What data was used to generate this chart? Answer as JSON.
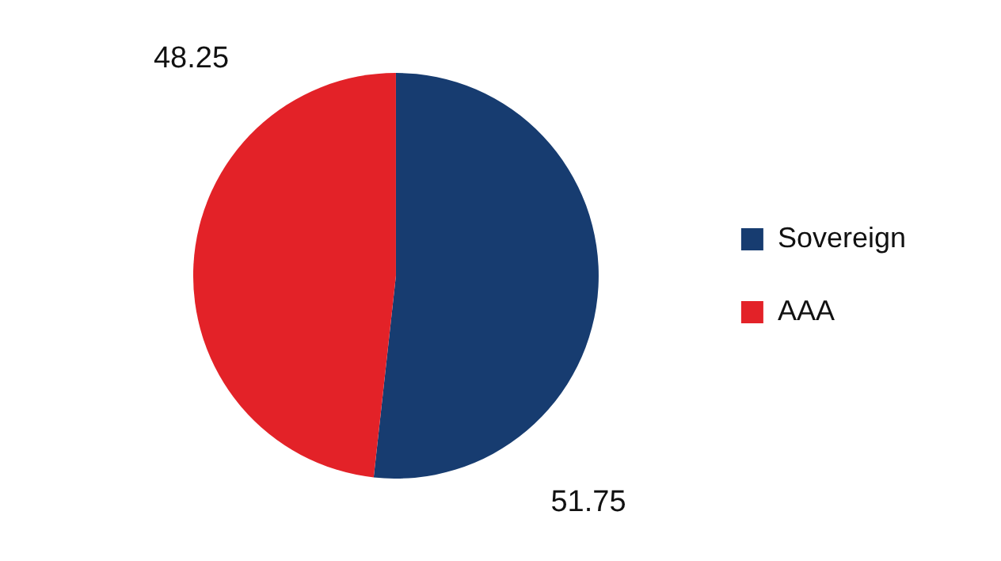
{
  "chart_data": {
    "type": "pie",
    "categories": [
      "Sovereign",
      "AAA"
    ],
    "values": [
      51.75,
      48.25
    ],
    "colors": [
      "#173c70",
      "#e32228"
    ],
    "data_labels": true,
    "legend": "right"
  }
}
